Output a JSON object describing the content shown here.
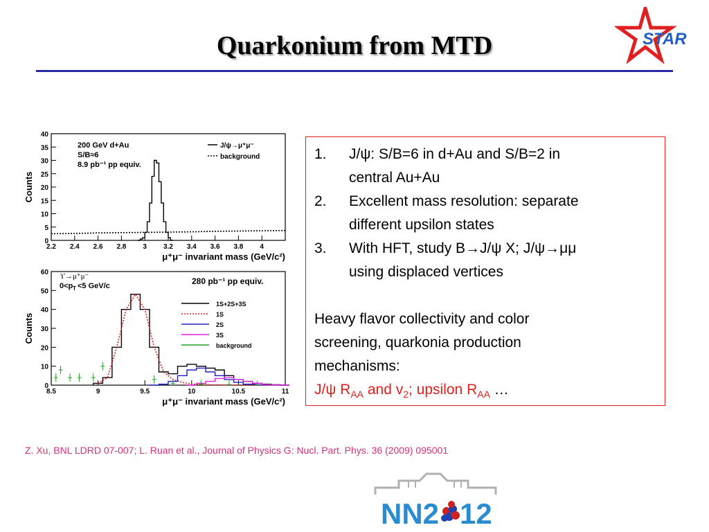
{
  "slide": {
    "title": "Quarkonium from MTD",
    "star_logo_text": "STAR",
    "reference": "Z. Xu, BNL LDRD 07-007; L. Ruan et al., Journal of Physics G: Nucl. Part. Phys. 36 (2009) 095001",
    "nn_logo_text_left": "NN2",
    "nn_logo_text_right": "12"
  },
  "textbox": {
    "items": [
      {
        "num": "1.",
        "lines": [
          "J/ψ: S/B=6 in d+Au  and S/B=2 in",
          "central Au+Au"
        ]
      },
      {
        "num": "2.",
        "lines": [
          "Excellent mass resolution: separate",
          "different upsilon states"
        ]
      },
      {
        "num": "3.",
        "lines": [
          "With HFT, study B→J/ψ X; J/ψ→μμ",
          "using displaced vertices"
        ]
      }
    ],
    "paragraph_lines": [
      "Heavy flavor collectivity and color",
      "screening, quarkonia production",
      "mechanisms:"
    ],
    "red_line": {
      "a": "J/ψ R",
      "aa1": "AA",
      "b": " and v",
      "sub2": "2",
      "c": "; upsilon R",
      "aa2": "AA",
      "d": "  …"
    }
  },
  "colors": {
    "title_rule": "#2a2aa8",
    "textbox_border": "#e02020",
    "red_text": "#e0201c",
    "reference": "#d4307a",
    "star_red": "#e02020",
    "star_blue": "#2060c0"
  },
  "chart_data": [
    {
      "type": "line",
      "ylabel": "Counts",
      "xlabel": "μ⁺μ⁻ invariant mass (GeV/c²)",
      "xlim": [
        2.2,
        4.2
      ],
      "ylim": [
        0,
        40
      ],
      "xticks": [
        2.2,
        2.4,
        2.6,
        2.8,
        3,
        3.2,
        3.4,
        3.6,
        3.8,
        4
      ],
      "yticks": [
        0,
        5,
        10,
        15,
        20,
        25,
        30,
        35,
        40
      ],
      "annotations": [
        "200 GeV d+Au",
        "S/B≈6",
        "8.9 pb⁻¹ pp equiv."
      ],
      "legend": [
        "J/ψ→μ⁺μ⁻",
        "background"
      ],
      "legend_position": "top-right",
      "series": [
        {
          "name": "J/ψ→μ⁺μ⁻",
          "style": "solid-step",
          "color": "#000000",
          "x": [
            2.95,
            2.97,
            2.99,
            3.01,
            3.03,
            3.05,
            3.07,
            3.09,
            3.11,
            3.13,
            3.15,
            3.17,
            3.19,
            3.21,
            3.23
          ],
          "y": [
            0,
            0.5,
            1,
            3,
            7,
            14,
            24,
            30,
            29,
            22,
            14,
            7,
            3,
            1,
            0
          ]
        },
        {
          "name": "background",
          "style": "dotted",
          "color": "#000000",
          "x": [
            2.2,
            2.4,
            2.6,
            2.8,
            3.0,
            3.2,
            3.4,
            3.6,
            3.8,
            4.0,
            4.2
          ],
          "y": [
            2.5,
            2.6,
            2.8,
            2.9,
            3.0,
            3.1,
            3.2,
            3.4,
            3.5,
            3.6,
            3.7
          ]
        }
      ]
    },
    {
      "type": "line",
      "ylabel": "Counts",
      "xlabel": "μ⁺μ⁻ invariant mass (GeV/c²)",
      "xlim": [
        8.5,
        11
      ],
      "ylim": [
        0,
        60
      ],
      "xticks": [
        8.5,
        9,
        9.5,
        10,
        10.5,
        11
      ],
      "yticks": [
        0,
        10,
        20,
        30,
        40,
        50,
        60
      ],
      "annotations": [
        "ϒ→μ⁺μ⁻",
        "0<p",
        "T",
        "<5 GeV/c",
        "280 pb⁻¹ pp equiv."
      ],
      "legend": [
        "1S+2S+3S",
        "1S",
        "2S",
        "3S",
        "background"
      ],
      "legend_position": "top-right",
      "series": [
        {
          "name": "1S+2S+3S",
          "color": "#000000",
          "style": "solid-step",
          "x": [
            9.0,
            9.1,
            9.2,
            9.3,
            9.4,
            9.5,
            9.6,
            9.7,
            9.8,
            9.9,
            10.0,
            10.1,
            10.2,
            10.3,
            10.4,
            10.5,
            10.6,
            10.7,
            10.8,
            10.9,
            11.0
          ],
          "y": [
            1,
            4,
            20,
            40,
            48,
            40,
            20,
            7,
            6,
            10,
            11,
            10,
            9,
            8,
            5,
            3,
            2,
            1,
            0.5,
            0.2,
            0
          ]
        },
        {
          "name": "1S",
          "color": "#e02020",
          "style": "dotted",
          "x": [
            9.0,
            9.1,
            9.2,
            9.3,
            9.4,
            9.5,
            9.6,
            9.7,
            9.8,
            9.9,
            10.0,
            10.2,
            10.5,
            11.0
          ],
          "y": [
            1,
            4,
            20,
            40,
            48,
            40,
            20,
            7,
            3,
            1.5,
            0.5,
            0.2,
            0,
            0
          ]
        },
        {
          "name": "2S",
          "color": "#2020c0",
          "style": "solid-step",
          "x": [
            9.6,
            9.7,
            9.8,
            9.9,
            10.0,
            10.1,
            10.2,
            10.3,
            10.4,
            10.5,
            10.6,
            10.8,
            11.0
          ],
          "y": [
            0,
            0.5,
            2,
            5,
            8,
            9,
            7,
            5,
            3,
            1.5,
            0.5,
            0.1,
            0
          ]
        },
        {
          "name": "3S",
          "color": "#e020e0",
          "style": "solid-step",
          "x": [
            10.0,
            10.1,
            10.2,
            10.3,
            10.4,
            10.5,
            10.6,
            10.7,
            10.8,
            11.0
          ],
          "y": [
            0,
            1,
            2,
            3.5,
            4,
            3,
            2,
            1,
            0.3,
            0
          ]
        },
        {
          "name": "background",
          "color": "#20a020",
          "style": "errorbars",
          "x": [
            8.55,
            8.6,
            8.7,
            8.8,
            8.95,
            9.05,
            9.6,
            9.8,
            10.1,
            10.4,
            10.7
          ],
          "y": [
            4,
            8,
            4,
            4,
            4,
            10,
            3,
            1,
            0.5,
            0.3,
            0.2
          ]
        }
      ]
    }
  ]
}
